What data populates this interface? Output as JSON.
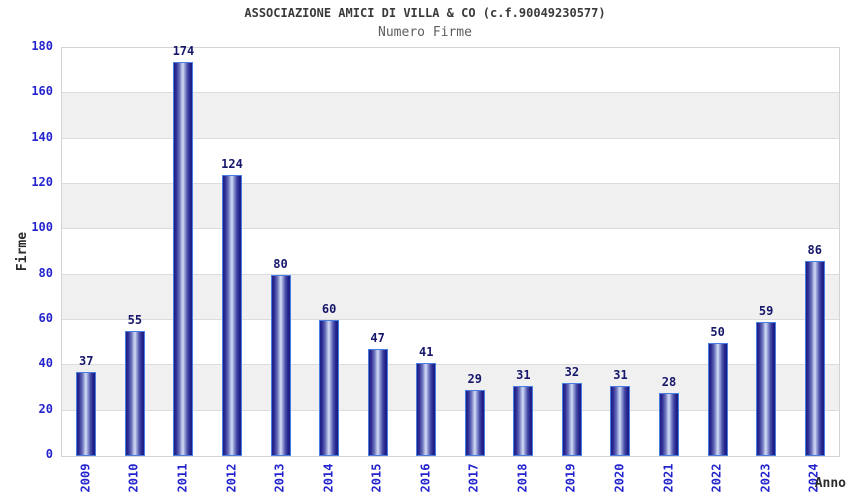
{
  "header": {
    "title": "ASSOCIAZIONE AMICI DI VILLA & CO (c.f.90049230577)",
    "subtitle": "Numero Firme"
  },
  "chart_data": {
    "type": "bar",
    "title": "ASSOCIAZIONE AMICI DI VILLA & CO (c.f.90049230577)",
    "subtitle": "Numero Firme",
    "categories": [
      "2009",
      "2010",
      "2011",
      "2012",
      "2013",
      "2014",
      "2015",
      "2016",
      "2017",
      "2018",
      "2019",
      "2020",
      "2021",
      "2022",
      "2023",
      "2024"
    ],
    "values": [
      37,
      55,
      174,
      124,
      80,
      60,
      47,
      41,
      29,
      31,
      32,
      31,
      28,
      50,
      59,
      86
    ],
    "xlabel": "Anno",
    "ylabel": "Firme",
    "ylim": [
      0,
      180
    ],
    "ytick_step": 20,
    "grid": "horizontal-bands",
    "legend": "none",
    "colors": {
      "bar_dark": "#1d1d85",
      "bar_highlight": "#d6dcf5",
      "bar_border": "#4a7de0",
      "tick_label": "#2424cf",
      "value_label": "#17176b",
      "band_gray": "#f0f0f0",
      "gridline": "#dcdcdc",
      "title_text": "#3a3a3a",
      "subtitle_text": "#5f5f5f"
    }
  }
}
